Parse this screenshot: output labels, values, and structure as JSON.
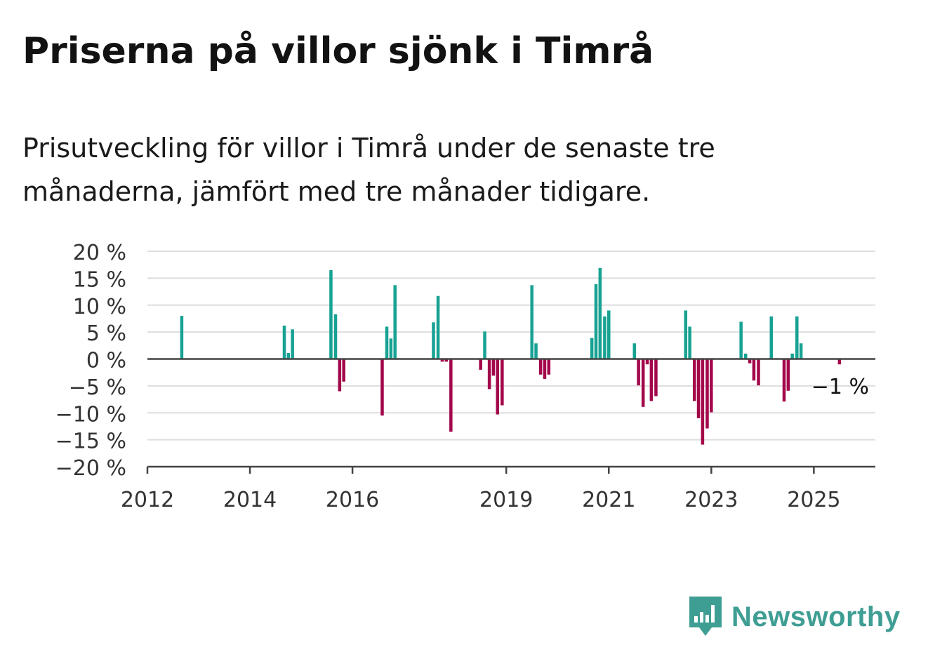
{
  "title": "Priserna på villor sjönk i Timrå",
  "subtitle": "Prisutveckling för villor i Timrå under de senaste tre månaderna, jämfört med tre månader tidigare.",
  "brand": {
    "name": "Newsworthy",
    "icon": "newsworthy-logo-icon",
    "color": "#3f9e94"
  },
  "chart_data": {
    "type": "bar",
    "x_unit": "year",
    "xlim": [
      2012,
      2026.2
    ],
    "ylim": [
      -20,
      20
    ],
    "y_ticks": [
      20,
      15,
      10,
      5,
      0,
      -5,
      -10,
      -15,
      -20
    ],
    "y_tick_labels": [
      "20 %",
      "15 %",
      "10 %",
      "5 %",
      "0 %",
      "−5 %",
      "−10 %",
      "−15 %",
      "−20 %"
    ],
    "x_ticks": [
      2012,
      2014,
      2016,
      2019,
      2021,
      2023,
      2025
    ],
    "x_tick_labels": [
      "2012",
      "2014",
      "2016",
      "2019",
      "2021",
      "2023",
      "2025"
    ],
    "grid": true,
    "positive_color": "#17a293",
    "negative_color": "#a3064a",
    "annotation": {
      "text": "−1 %",
      "x": 2025.5,
      "y": -1
    },
    "points": [
      {
        "x": 2012.67,
        "y": 8
      },
      {
        "x": 2014.67,
        "y": 6.2
      },
      {
        "x": 2014.75,
        "y": 1.1
      },
      {
        "x": 2014.83,
        "y": 5.5
      },
      {
        "x": 2015.58,
        "y": 16.5
      },
      {
        "x": 2015.67,
        "y": 8.3
      },
      {
        "x": 2015.75,
        "y": -6
      },
      {
        "x": 2015.83,
        "y": -4.2
      },
      {
        "x": 2016.58,
        "y": -10.5
      },
      {
        "x": 2016.67,
        "y": 6
      },
      {
        "x": 2016.75,
        "y": 3.8
      },
      {
        "x": 2016.83,
        "y": 13.7
      },
      {
        "x": 2017.58,
        "y": 6.8
      },
      {
        "x": 2017.67,
        "y": 11.7
      },
      {
        "x": 2017.75,
        "y": -0.5
      },
      {
        "x": 2017.83,
        "y": -0.5
      },
      {
        "x": 2017.92,
        "y": -13.5
      },
      {
        "x": 2018.5,
        "y": -2
      },
      {
        "x": 2018.58,
        "y": 5.1
      },
      {
        "x": 2018.67,
        "y": -5.6
      },
      {
        "x": 2018.75,
        "y": -3.1
      },
      {
        "x": 2018.83,
        "y": -10.3
      },
      {
        "x": 2018.92,
        "y": -8.6
      },
      {
        "x": 2019.5,
        "y": 13.7
      },
      {
        "x": 2019.58,
        "y": 2.9
      },
      {
        "x": 2019.67,
        "y": -2.9
      },
      {
        "x": 2019.75,
        "y": -3.7
      },
      {
        "x": 2019.83,
        "y": -2.9
      },
      {
        "x": 2020.67,
        "y": 3.9
      },
      {
        "x": 2020.75,
        "y": 13.9
      },
      {
        "x": 2020.83,
        "y": 16.9
      },
      {
        "x": 2020.92,
        "y": 7.9
      },
      {
        "x": 2021.0,
        "y": 9
      },
      {
        "x": 2021.5,
        "y": 2.9
      },
      {
        "x": 2021.58,
        "y": -4.9
      },
      {
        "x": 2021.67,
        "y": -8.9
      },
      {
        "x": 2021.75,
        "y": -1
      },
      {
        "x": 2021.83,
        "y": -7.8
      },
      {
        "x": 2021.92,
        "y": -6.9
      },
      {
        "x": 2022.5,
        "y": 9
      },
      {
        "x": 2022.58,
        "y": 6
      },
      {
        "x": 2022.67,
        "y": -7.8
      },
      {
        "x": 2022.75,
        "y": -11
      },
      {
        "x": 2022.83,
        "y": -15.9
      },
      {
        "x": 2022.92,
        "y": -12.9
      },
      {
        "x": 2023.0,
        "y": -9.9
      },
      {
        "x": 2023.58,
        "y": 6.9
      },
      {
        "x": 2023.67,
        "y": 1
      },
      {
        "x": 2023.75,
        "y": -0.8
      },
      {
        "x": 2023.83,
        "y": -4
      },
      {
        "x": 2023.92,
        "y": -4.9
      },
      {
        "x": 2024.17,
        "y": 7.9
      },
      {
        "x": 2024.42,
        "y": -7.9
      },
      {
        "x": 2024.5,
        "y": -5.9
      },
      {
        "x": 2024.58,
        "y": 1
      },
      {
        "x": 2024.67,
        "y": 7.9
      },
      {
        "x": 2024.75,
        "y": 2.9
      },
      {
        "x": 2025.5,
        "y": -1
      }
    ]
  }
}
